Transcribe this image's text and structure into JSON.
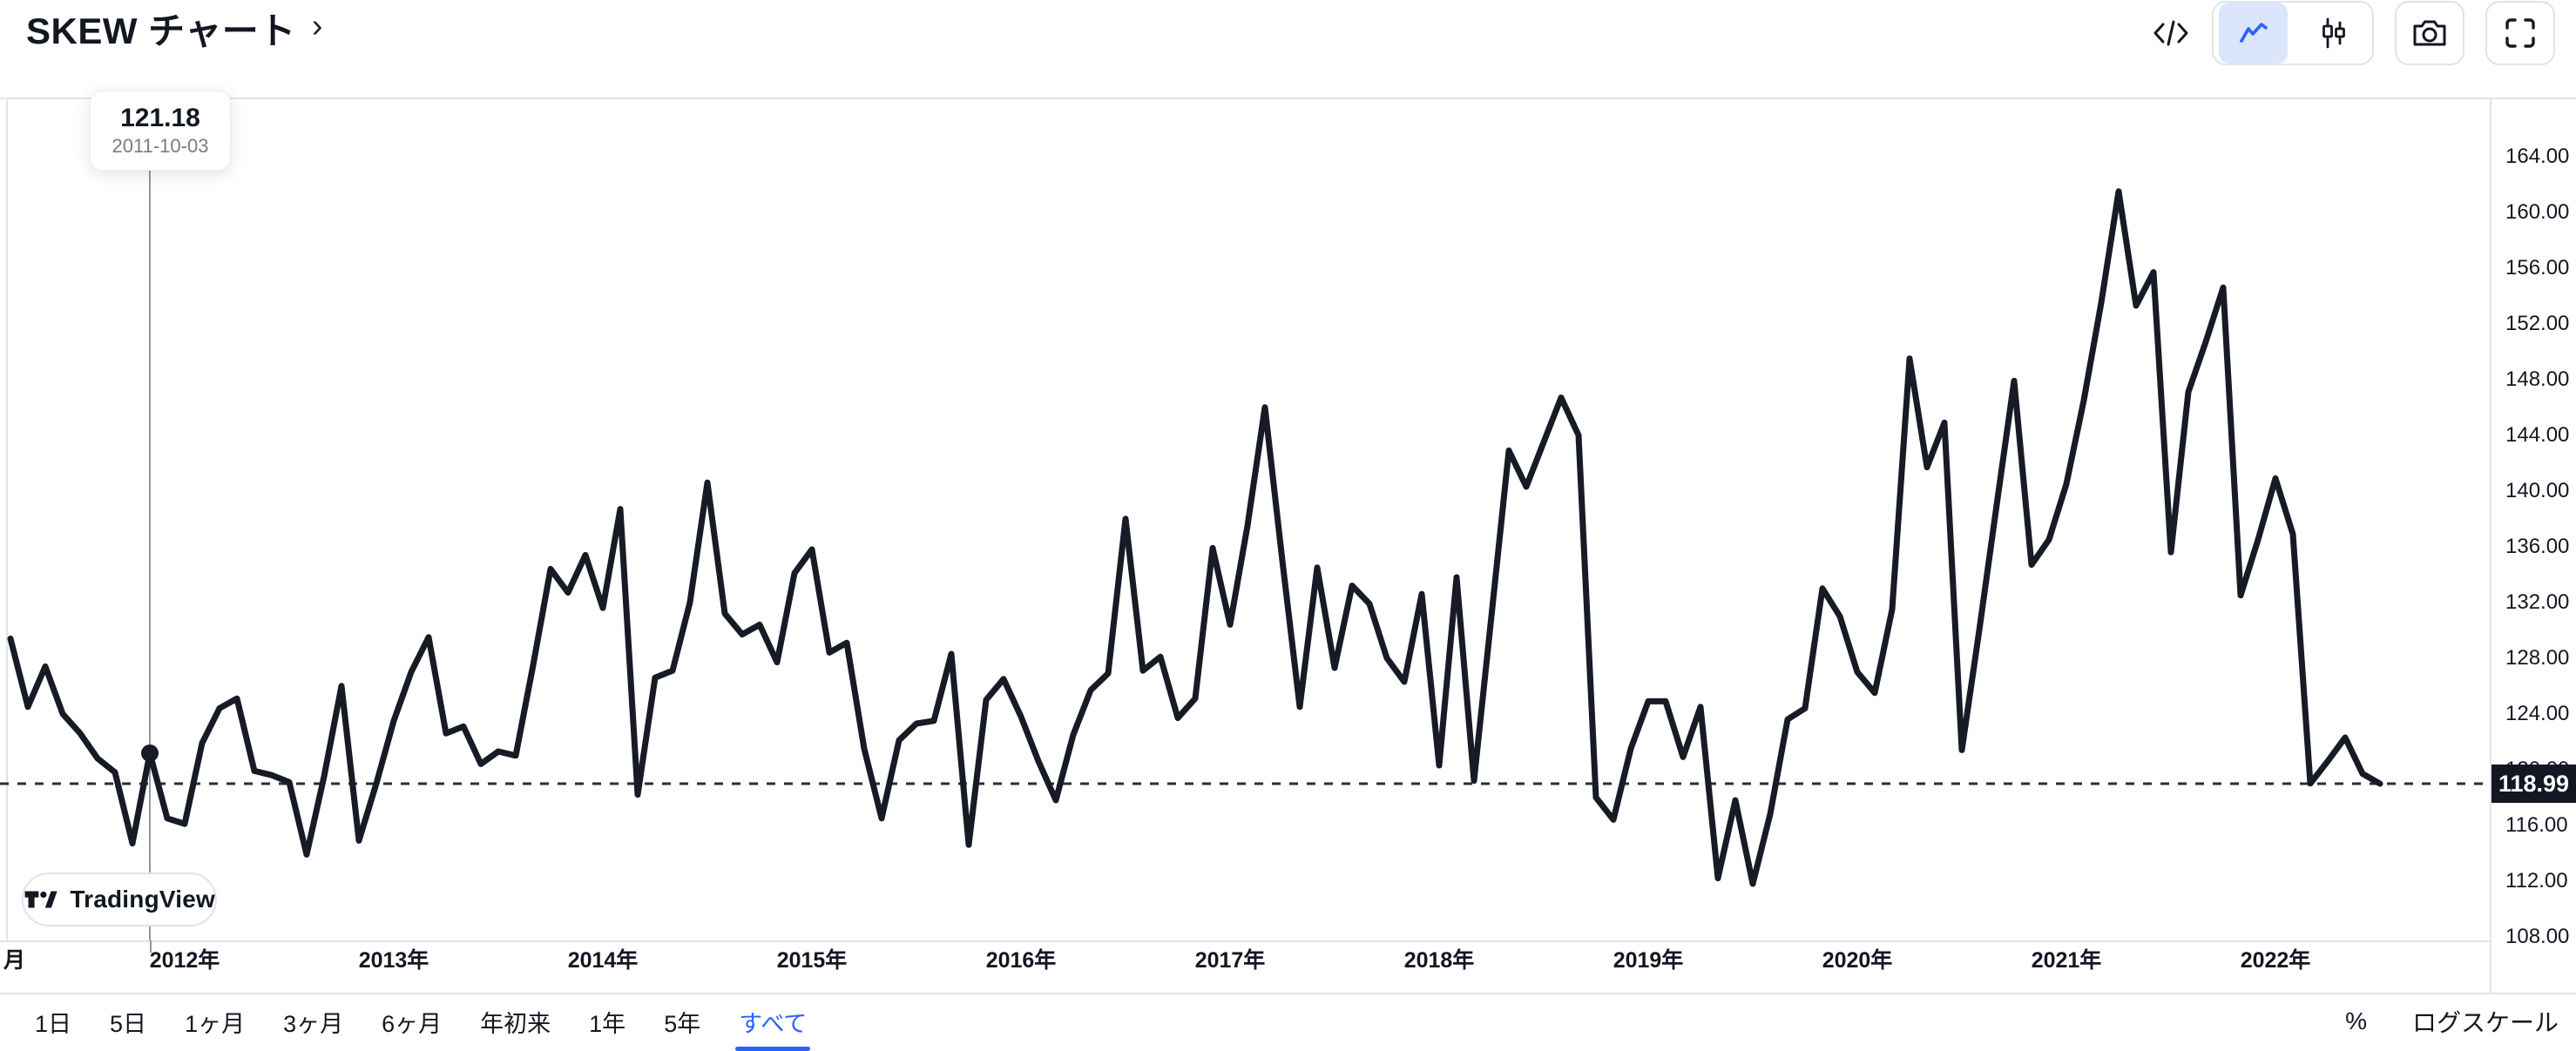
{
  "header": {
    "title": "SKEW チャート",
    "chevron": "›",
    "actions": {
      "code_button": "embed-code",
      "chart_style_line": "line-style",
      "chart_style_candles": "candles-style",
      "snapshot": "camera",
      "fullscreen": "fullscreen"
    }
  },
  "tooltip": {
    "price": "121.18",
    "date": "2011-10-03"
  },
  "price_axis": {
    "labels": [
      "164.00",
      "160.00",
      "156.00",
      "152.00",
      "148.00",
      "144.00",
      "140.00",
      "136.00",
      "132.00",
      "128.00",
      "124.00",
      "120.00",
      "116.00",
      "112.00",
      "108.00"
    ],
    "last_price_badge": "118.99"
  },
  "time_axis": {
    "partial_left_label": "月",
    "year_labels": [
      "2012年",
      "2013年",
      "2014年",
      "2015年",
      "2016年",
      "2017年",
      "2018年",
      "2019年",
      "2020年",
      "2021年",
      "2022年"
    ]
  },
  "toolbar": {
    "ranges": [
      "1日",
      "5日",
      "1ヶ月",
      "3ヶ月",
      "6ヶ月",
      "年初来",
      "1年",
      "5年",
      "すべて"
    ],
    "selected": "すべて"
  },
  "scale_controls": {
    "percent": "%",
    "log_scale": "ログスケール"
  },
  "logo": {
    "text": "TradingView"
  },
  "colors": {
    "text": "#131722",
    "muted": "#787b86",
    "accent": "#2962ff",
    "selected_icon_bg": "#dbe5fb",
    "border": "#e0e3eb",
    "line": "#171b26",
    "crosshair": "#9598a1",
    "badge_bg": "#131722",
    "badge_text": "#ffffff"
  },
  "chart_data": {
    "type": "line",
    "title": "SKEW チャート",
    "x_start_month": "2011-02",
    "x_step_months": 1,
    "ylim": [
      106,
      166
    ],
    "y_ticks": [
      108,
      112,
      116,
      120,
      124,
      128,
      132,
      136,
      140,
      144,
      148,
      152,
      156,
      160,
      164
    ],
    "grid": "off",
    "legend": "none",
    "last_price": 118.99,
    "crosshair_point": {
      "date": "2011-10-03",
      "value": 121.18
    },
    "values": [
      129.4,
      124.5,
      127.4,
      124.0,
      122.6,
      120.8,
      119.8,
      114.7,
      121.18,
      116.5,
      116.1,
      121.9,
      124.4,
      125.1,
      119.9,
      119.6,
      119.1,
      113.9,
      119.5,
      126.0,
      114.9,
      119.0,
      123.5,
      127.0,
      129.5,
      122.6,
      123.1,
      120.4,
      121.3,
      121.0,
      127.5,
      134.4,
      132.7,
      135.4,
      131.6,
      138.7,
      118.2,
      126.6,
      127.1,
      132.0,
      140.6,
      131.2,
      129.7,
      130.4,
      127.7,
      134.1,
      135.8,
      128.4,
      129.1,
      121.5,
      116.5,
      122.1,
      123.3,
      123.5,
      128.3,
      114.6,
      125.0,
      126.5,
      123.8,
      120.6,
      117.8,
      122.5,
      125.7,
      126.9,
      138.0,
      127.1,
      128.1,
      123.7,
      125.1,
      135.9,
      130.4,
      137.5,
      146.0,
      135.0,
      124.5,
      134.5,
      127.3,
      133.2,
      131.9,
      128.0,
      126.3,
      132.6,
      120.3,
      133.8,
      119.2,
      131.0,
      142.9,
      140.3,
      143.5,
      146.7,
      144.0,
      118.0,
      116.4,
      121.5,
      124.9,
      124.9,
      120.9,
      124.5,
      112.2,
      117.8,
      111.8,
      116.8,
      123.6,
      124.4,
      133.0,
      131.0,
      127.0,
      125.5,
      131.5,
      149.5,
      141.7,
      144.9,
      121.4,
      130.0,
      139.0,
      147.9,
      134.7,
      136.5,
      140.5,
      146.5,
      153.5,
      161.5,
      153.3,
      155.7,
      135.6,
      147.1,
      150.7,
      154.6,
      132.5,
      136.5,
      140.9,
      136.9,
      119.0,
      120.6,
      122.3,
      119.7,
      118.99
    ]
  }
}
